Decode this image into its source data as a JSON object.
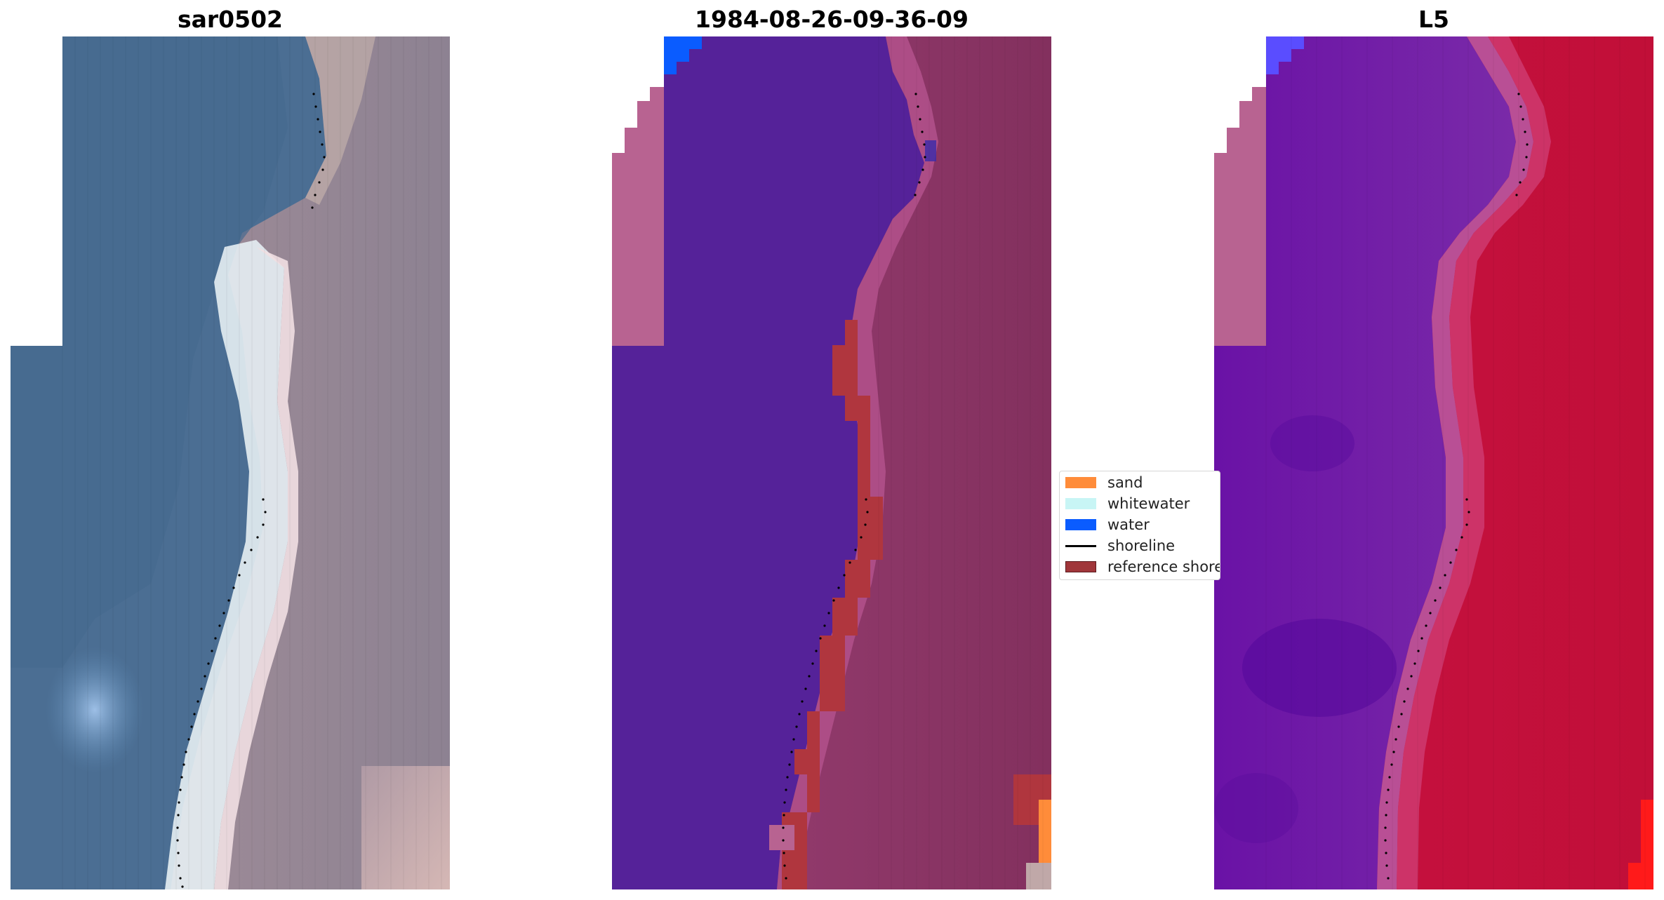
{
  "figure": {
    "panels": [
      {
        "title": "sar0502",
        "kind": "rgb"
      },
      {
        "title": "1984-08-26-09-36-09",
        "kind": "classified"
      },
      {
        "title": "L5",
        "kind": "mndwi"
      }
    ]
  },
  "legend": {
    "items": [
      {
        "label": "sand",
        "color": "#ff8c3a",
        "kind": "patch"
      },
      {
        "label": "whitewater",
        "color": "#c8f5f5",
        "kind": "patch"
      },
      {
        "label": "water",
        "color": "#0a5cff",
        "kind": "patch"
      },
      {
        "label": "shoreline",
        "color": "#000000",
        "kind": "line"
      },
      {
        "label": "reference shoreline",
        "color": "#a0363a",
        "kind": "patch"
      }
    ]
  },
  "colors": {
    "sea_rgb": "#4b6e93",
    "land_rgb": "#9d8b98",
    "surf_rgb": "#e8f2f7",
    "sea_class": "#552299",
    "land_class": "#8e3767",
    "sea_index": "#6a1aa8",
    "land_index": "#c2103a",
    "nodata_pink": "#b86391"
  }
}
